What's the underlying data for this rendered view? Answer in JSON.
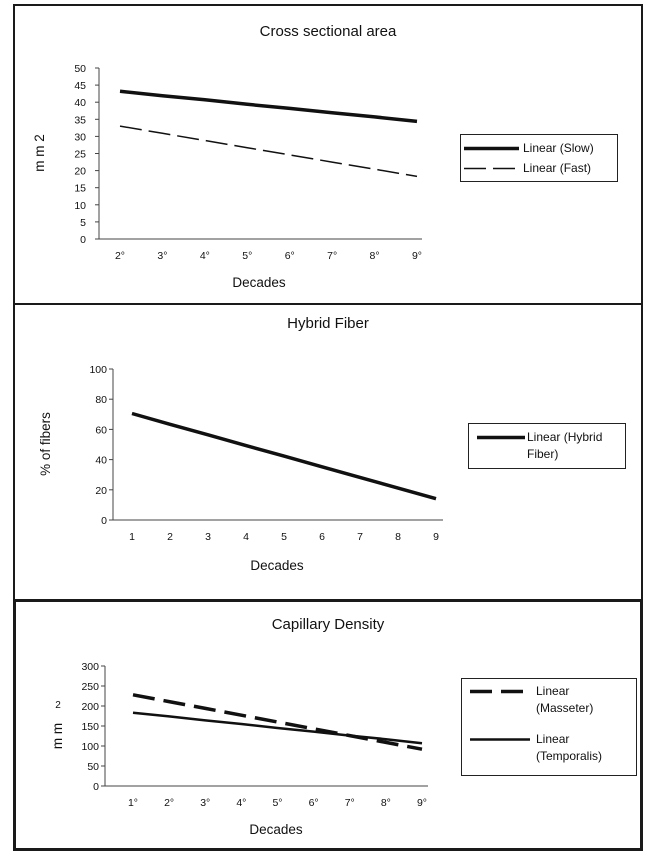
{
  "chart_data": [
    {
      "type": "line",
      "title": "Cross sectional area",
      "xlabel": "Decades",
      "ylabel": "m m 2",
      "categories": [
        "2°",
        "3°",
        "4°",
        "5°",
        "6°",
        "7°",
        "8°",
        "9°"
      ],
      "ylim": [
        0,
        50
      ],
      "yticks": [
        0,
        5,
        10,
        15,
        20,
        25,
        30,
        35,
        40,
        45,
        50
      ],
      "grid": false,
      "legend": "right",
      "series": [
        {
          "name": "Linear (Slow)",
          "style": "solid",
          "values": [
            43.2,
            41.9,
            40.7,
            39.4,
            38.2,
            36.9,
            35.7,
            34.4
          ]
        },
        {
          "name": "Linear (Fast)",
          "style": "dashed",
          "values": [
            33.0,
            30.9,
            28.8,
            26.7,
            24.6,
            22.5,
            20.4,
            18.3
          ]
        }
      ]
    },
    {
      "type": "line",
      "title": "Hybrid Fiber",
      "xlabel": "Decades",
      "ylabel": "% of fibers",
      "categories": [
        "1",
        "2",
        "3",
        "4",
        "5",
        "6",
        "7",
        "8",
        "9"
      ],
      "ylim": [
        0,
        100
      ],
      "yticks": [
        0,
        20,
        40,
        60,
        80,
        100
      ],
      "grid": false,
      "legend": "right",
      "series": [
        {
          "name": "Linear (Hybrid Fiber)",
          "style": "solid",
          "values": [
            70.5,
            63.4,
            56.4,
            49.3,
            42.3,
            35.2,
            28.2,
            21.1,
            14.1
          ]
        }
      ]
    },
    {
      "type": "line",
      "title": "Capillary Density",
      "xlabel": "Decades",
      "ylabel": "m m",
      "ylabel_super": "2",
      "categories": [
        "1°",
        "2°",
        "3°",
        "4°",
        "5°",
        "6°",
        "7°",
        "8°",
        "9°"
      ],
      "ylim": [
        0,
        300
      ],
      "yticks": [
        0,
        50,
        100,
        150,
        200,
        250,
        300
      ],
      "grid": false,
      "legend": "right",
      "series": [
        {
          "name": "Linear (Masseter)",
          "style": "dashed",
          "values": [
            228,
            211,
            194,
            177,
            160,
            143,
            126,
            109,
            92
          ]
        },
        {
          "name": "Linear (Temporalis)",
          "style": "solid",
          "values": [
            183,
            174,
            164,
            155,
            145,
            136,
            126,
            117,
            107
          ]
        }
      ]
    }
  ],
  "legends": [
    {
      "items": [
        {
          "label": "Linear (Slow)"
        },
        {
          "label": "Linear (Fast)"
        }
      ]
    },
    {
      "items": [
        {
          "label": "Linear (Hybrid\nFiber)"
        }
      ]
    },
    {
      "items": [
        {
          "label": "Linear\n(Masseter)"
        },
        {
          "label": "Linear\n(Temporalis)"
        }
      ]
    }
  ]
}
